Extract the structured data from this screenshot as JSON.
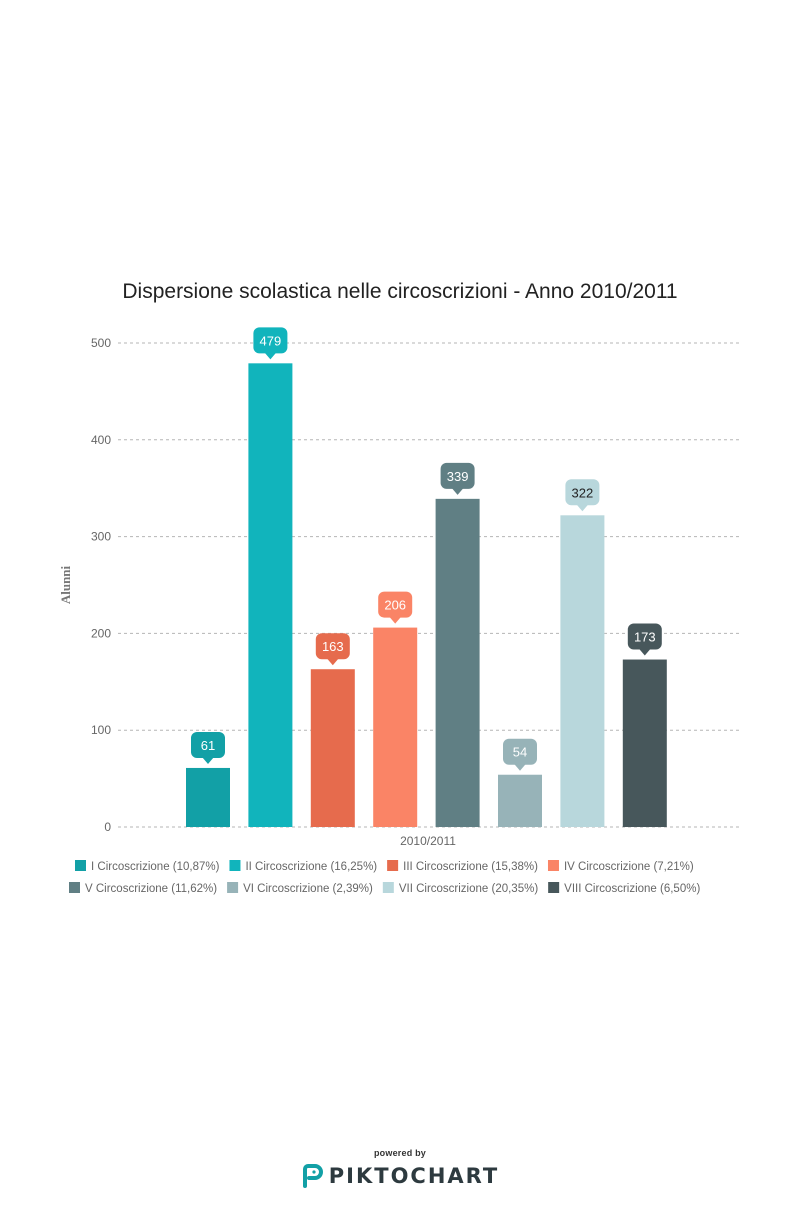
{
  "chart_data": {
    "type": "bar",
    "title": "Dispersione scolastica nelle circoscrizioni - Anno 2010/2011",
    "xlabel": "2010/2011",
    "ylabel": "Alunni",
    "ylim": [
      0,
      500
    ],
    "yticks": [
      0,
      100,
      200,
      300,
      400,
      500
    ],
    "grid": true,
    "legend_position": "bottom",
    "categories": [
      "2010/2011"
    ],
    "series": [
      {
        "name": "I Circoscrizione (10,87%)",
        "values": [
          61
        ],
        "color": "#12a0a6"
      },
      {
        "name": "II Circoscrizione (16,25%)",
        "values": [
          479
        ],
        "color": "#11b4bc"
      },
      {
        "name": "III Circoscrizione (15,38%)",
        "values": [
          163
        ],
        "color": "#e66b4d"
      },
      {
        "name": "IV Circoscrizione (7,21%)",
        "values": [
          206
        ],
        "color": "#fa8466"
      },
      {
        "name": "V Circoscrizione (11,62%)",
        "values": [
          339
        ],
        "color": "#607f84"
      },
      {
        "name": "VI Circoscrizione (2,39%)",
        "values": [
          54
        ],
        "color": "#97b3b8"
      },
      {
        "name": "VII Circoscrizione (20,35%)",
        "values": [
          322
        ],
        "color": "#b8d7dc"
      },
      {
        "name": "VIII Circoscrizione (6,50%)",
        "values": [
          173
        ],
        "color": "#47575b"
      }
    ]
  },
  "footer": {
    "powered_by": "powered by",
    "brand": "PIKTOCHART",
    "logo_icon": "piktochart-logo-icon",
    "brand_color": "#12a0a6"
  }
}
